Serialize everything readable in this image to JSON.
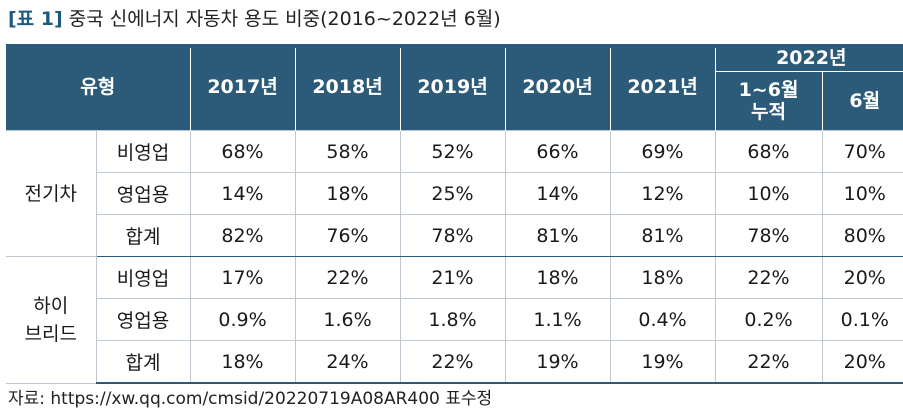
{
  "caption": {
    "tag": "[표 1]",
    "title": "중국 신에너지 자동차 용도 비중(2016~2022년 6월)"
  },
  "table": {
    "header": {
      "type": "유형",
      "years": [
        "2017년",
        "2018년",
        "2019년",
        "2020년",
        "2021년"
      ],
      "group_2022": "2022년",
      "sub_2022_cumulative_line1": "1~6월",
      "sub_2022_cumulative_line2": "누적",
      "sub_2022_june": "6월"
    },
    "groups": [
      {
        "name": "전기차",
        "rows": [
          {
            "label": "비영업",
            "values": [
              "68%",
              "58%",
              "52%",
              "66%",
              "69%",
              "68%",
              "70%"
            ]
          },
          {
            "label": "영업용",
            "values": [
              "14%",
              "18%",
              "25%",
              "14%",
              "12%",
              "10%",
              "10%"
            ]
          },
          {
            "label": "합계",
            "values": [
              "82%",
              "76%",
              "78%",
              "81%",
              "81%",
              "78%",
              "80%"
            ]
          }
        ]
      },
      {
        "name_line1": "하이",
        "name_line2": "브리드",
        "rows": [
          {
            "label": "비영업",
            "values": [
              "17%",
              "22%",
              "21%",
              "18%",
              "18%",
              "22%",
              "20%"
            ]
          },
          {
            "label": "영업용",
            "values": [
              "0.9%",
              "1.6%",
              "1.8%",
              "1.1%",
              "0.4%",
              "0.2%",
              "0.1%"
            ]
          },
          {
            "label": "합계",
            "values": [
              "18%",
              "24%",
              "22%",
              "19%",
              "19%",
              "22%",
              "20%"
            ]
          }
        ]
      }
    ]
  },
  "source": "자료: https://xw.qq.com/cmsid/20220719A08AR400 표수정",
  "colors": {
    "header_bg": "#2c5b79",
    "header_text": "#ffffff",
    "grid_line": "#bfc8d0"
  }
}
